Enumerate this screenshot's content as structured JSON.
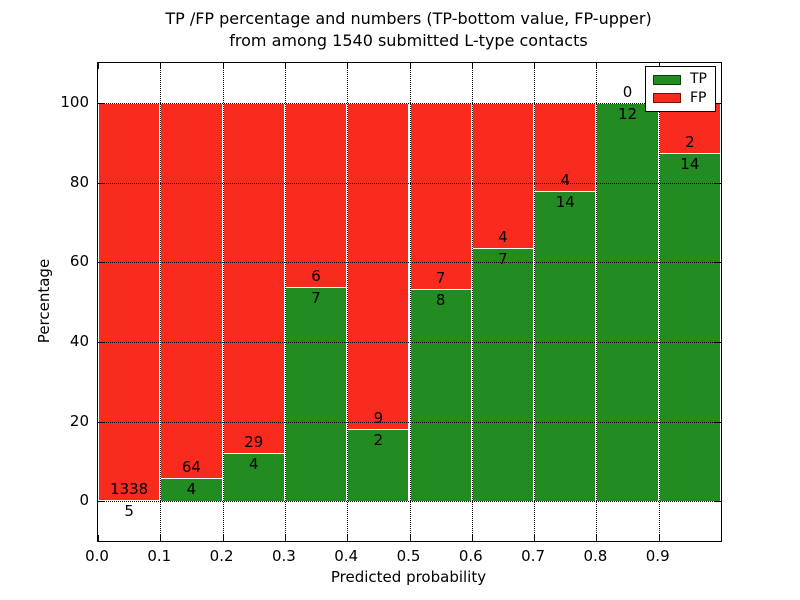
{
  "title": {
    "line1": "TP /FP percentage and numbers (TP-bottom value, FP-upper)",
    "line2": "from among 1540 submitted L-type contacts"
  },
  "axes": {
    "xlabel": "Predicted probability",
    "ylabel": "Percentage",
    "x_tick_values": [
      0.0,
      0.1,
      0.2,
      0.3,
      0.4,
      0.5,
      0.6,
      0.7,
      0.8,
      0.9
    ],
    "x_tick_labels": [
      "0.0",
      "0.1",
      "0.2",
      "0.3",
      "0.4",
      "0.5",
      "0.6",
      "0.7",
      "0.8",
      "0.9"
    ],
    "y_tick_values": [
      0,
      20,
      40,
      60,
      80,
      100
    ],
    "y_tick_labels": [
      "0",
      "20",
      "40",
      "60",
      "80",
      "100"
    ]
  },
  "legend": {
    "position": "upper right",
    "items": [
      {
        "label": "TP",
        "color": "#228b22"
      },
      {
        "label": "FP",
        "color": "#f92b1e"
      }
    ]
  },
  "chart_data": {
    "type": "bar",
    "stacked": true,
    "title": "TP /FP percentage and numbers (TP-bottom value, FP-upper) from among 1540 submitted L-type contacts",
    "xlabel": "Predicted probability",
    "ylabel": "Percentage",
    "xlim": [
      0.0,
      1.0
    ],
    "ylim": [
      -10,
      110
    ],
    "grid": true,
    "grid_linestyle": "dotted",
    "legend_position": "upper right",
    "total_contacts": 1540,
    "bin_edges": [
      0.0,
      0.1,
      0.2,
      0.3,
      0.4,
      0.5,
      0.6,
      0.7,
      0.8,
      0.9,
      1.0
    ],
    "categories": [
      "0.0-0.1",
      "0.1-0.2",
      "0.2-0.3",
      "0.3-0.4",
      "0.4-0.5",
      "0.5-0.6",
      "0.6-0.7",
      "0.7-0.8",
      "0.8-0.9",
      "0.9-1.0"
    ],
    "series": [
      {
        "name": "TP",
        "color": "#228b22",
        "counts": [
          5,
          4,
          4,
          7,
          2,
          8,
          7,
          14,
          12,
          14
        ],
        "percent": [
          0.37,
          5.88,
          12.12,
          53.85,
          18.18,
          53.33,
          63.64,
          77.78,
          100.0,
          87.5
        ]
      },
      {
        "name": "FP",
        "color": "#f92b1e",
        "counts": [
          1338,
          64,
          29,
          6,
          9,
          7,
          4,
          4,
          0,
          2
        ],
        "percent": [
          99.63,
          94.12,
          87.88,
          46.15,
          81.82,
          46.67,
          36.36,
          22.22,
          0.0,
          12.5
        ]
      }
    ]
  }
}
